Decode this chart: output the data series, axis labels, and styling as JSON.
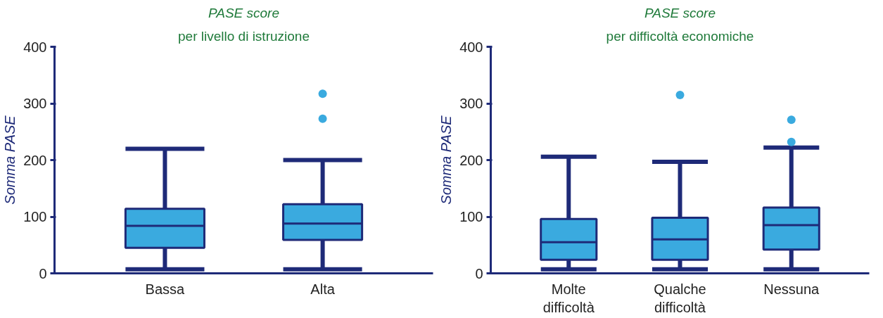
{
  "chart_data": [
    {
      "type": "box",
      "title": "PASE score",
      "subtitle": "per livello di istruzione",
      "ylabel": "Somma PASE",
      "categories": [
        "Bassa",
        "Alta"
      ],
      "ylim": [
        0,
        400
      ],
      "yticks": [
        0,
        100,
        200,
        300,
        400
      ],
      "series": [
        {
          "color": "#3aaadf",
          "boxes": [
            {
              "low": 7,
              "q1": 45,
              "median": 84,
              "q3": 114,
              "high": 220
            },
            {
              "low": 7,
              "q1": 59,
              "median": 88,
              "q3": 122,
              "high": 200,
              "outliers": [
                273,
                317
              ]
            }
          ]
        }
      ]
    },
    {
      "type": "box",
      "title": "PASE score",
      "subtitle": "per difficoltà economiche",
      "ylabel": "Somma PASE",
      "categories": [
        "Molte\ndifficoltà",
        "Qualche\ndifficoltà",
        "Nessuna"
      ],
      "ylim": [
        0,
        400
      ],
      "yticks": [
        0,
        100,
        200,
        300,
        400
      ],
      "series": [
        {
          "color": "#3aaadf",
          "boxes": [
            {
              "low": 7,
              "q1": 24,
              "median": 55,
              "q3": 96,
              "high": 206
            },
            {
              "low": 7,
              "q1": 24,
              "median": 60,
              "q3": 98,
              "high": 197,
              "outliers": [
                315
              ]
            },
            {
              "low": 7,
              "q1": 42,
              "median": 85,
              "q3": 116,
              "high": 222,
              "outliers": [
                232,
                271
              ]
            }
          ]
        }
      ]
    }
  ]
}
